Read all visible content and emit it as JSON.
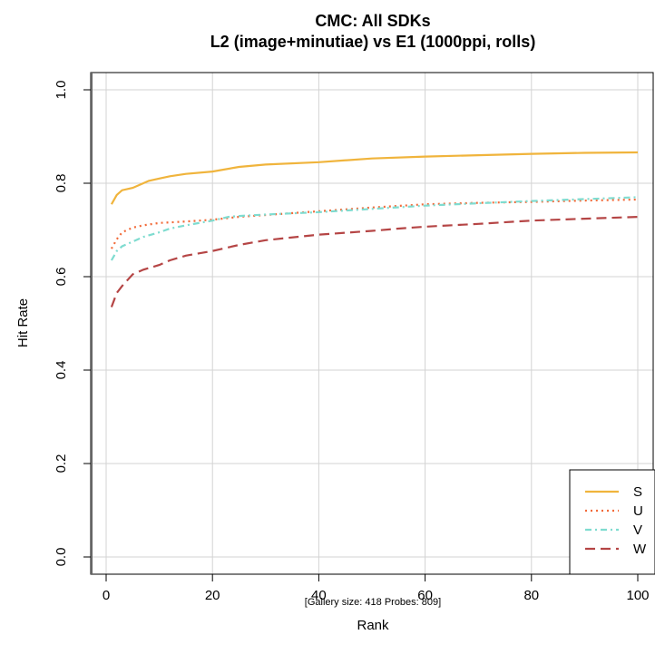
{
  "chart_data": {
    "type": "line",
    "title": "CMC: All SDKs",
    "subtitle": "L2 (image+minutiae) vs E1 (1000ppi, rolls)",
    "xlabel": "Rank",
    "ylabel": "Hit Rate",
    "note": "[Gallery size: 418  Probes: 809]",
    "xlim": [
      0,
      100
    ],
    "ylim": [
      0.0,
      1.0
    ],
    "x_ticks": [
      0,
      20,
      40,
      60,
      80,
      100
    ],
    "y_ticks": [
      0.0,
      0.2,
      0.4,
      0.6,
      0.8,
      1.0
    ],
    "y_tick_labels": [
      "0.0",
      "0.2",
      "0.4",
      "0.6",
      "0.8",
      "1.0"
    ],
    "grid": true,
    "legend_position": "bottom-right",
    "series": [
      {
        "name": "S",
        "color": "#f0b43c",
        "dash": "solid",
        "x": [
          1,
          2,
          3,
          5,
          7,
          8,
          10,
          12,
          15,
          20,
          25,
          30,
          40,
          50,
          60,
          70,
          80,
          90,
          100
        ],
        "y": [
          0.755,
          0.775,
          0.785,
          0.79,
          0.8,
          0.805,
          0.81,
          0.815,
          0.82,
          0.825,
          0.835,
          0.84,
          0.845,
          0.853,
          0.857,
          0.86,
          0.863,
          0.865,
          0.866
        ]
      },
      {
        "name": "U",
        "color": "#f26b3a",
        "dash": "dotted",
        "x": [
          1,
          2,
          3,
          5,
          7,
          10,
          15,
          20,
          25,
          30,
          40,
          50,
          60,
          70,
          80,
          90,
          100
        ],
        "y": [
          0.66,
          0.68,
          0.695,
          0.705,
          0.71,
          0.715,
          0.718,
          0.722,
          0.728,
          0.732,
          0.74,
          0.748,
          0.755,
          0.758,
          0.76,
          0.763,
          0.765
        ]
      },
      {
        "name": "V",
        "color": "#7fdcd0",
        "dash": "dashdot",
        "x": [
          1,
          2,
          3,
          5,
          7,
          10,
          12,
          15,
          20,
          23,
          25,
          30,
          40,
          50,
          60,
          70,
          80,
          90,
          100
        ],
        "y": [
          0.635,
          0.655,
          0.665,
          0.675,
          0.685,
          0.695,
          0.703,
          0.71,
          0.72,
          0.728,
          0.73,
          0.733,
          0.738,
          0.745,
          0.752,
          0.757,
          0.762,
          0.766,
          0.77
        ]
      },
      {
        "name": "W",
        "color": "#b54545",
        "dash": "longdash",
        "x": [
          1,
          2,
          3,
          5,
          7,
          10,
          12,
          15,
          20,
          25,
          30,
          40,
          50,
          55,
          60,
          70,
          80,
          90,
          100
        ],
        "y": [
          0.535,
          0.565,
          0.58,
          0.605,
          0.615,
          0.625,
          0.635,
          0.645,
          0.655,
          0.668,
          0.678,
          0.69,
          0.698,
          0.703,
          0.707,
          0.713,
          0.72,
          0.724,
          0.728
        ]
      }
    ]
  }
}
